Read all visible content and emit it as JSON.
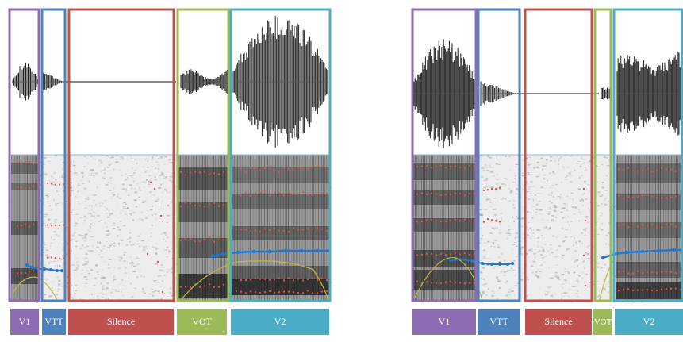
{
  "panels": [
    {
      "id": "left",
      "segments": [
        {
          "label": "V1",
          "color": "#8c6bb1"
        },
        {
          "label": "VTT",
          "color": "#4f81bd"
        },
        {
          "label": "Silence",
          "color": "#c0504d"
        },
        {
          "label": "VOT",
          "color": "#9bbb59"
        },
        {
          "label": "V2",
          "color": "#4bacc6"
        }
      ]
    },
    {
      "id": "right",
      "segments": [
        {
          "label": "V1",
          "color": "#8c6bb1"
        },
        {
          "label": "VTT",
          "color": "#4f81bd"
        },
        {
          "label": "Silence",
          "color": "#c0504d"
        },
        {
          "label": "VOT",
          "color": "#9bbb59"
        },
        {
          "label": "V2",
          "color": "#4bacc6"
        }
      ]
    }
  ],
  "colors": {
    "formant_dots": "#d9534f",
    "pitch_track": "#1f78d1",
    "intensity_curve": "#c9b83a",
    "waveform": "#222222"
  }
}
